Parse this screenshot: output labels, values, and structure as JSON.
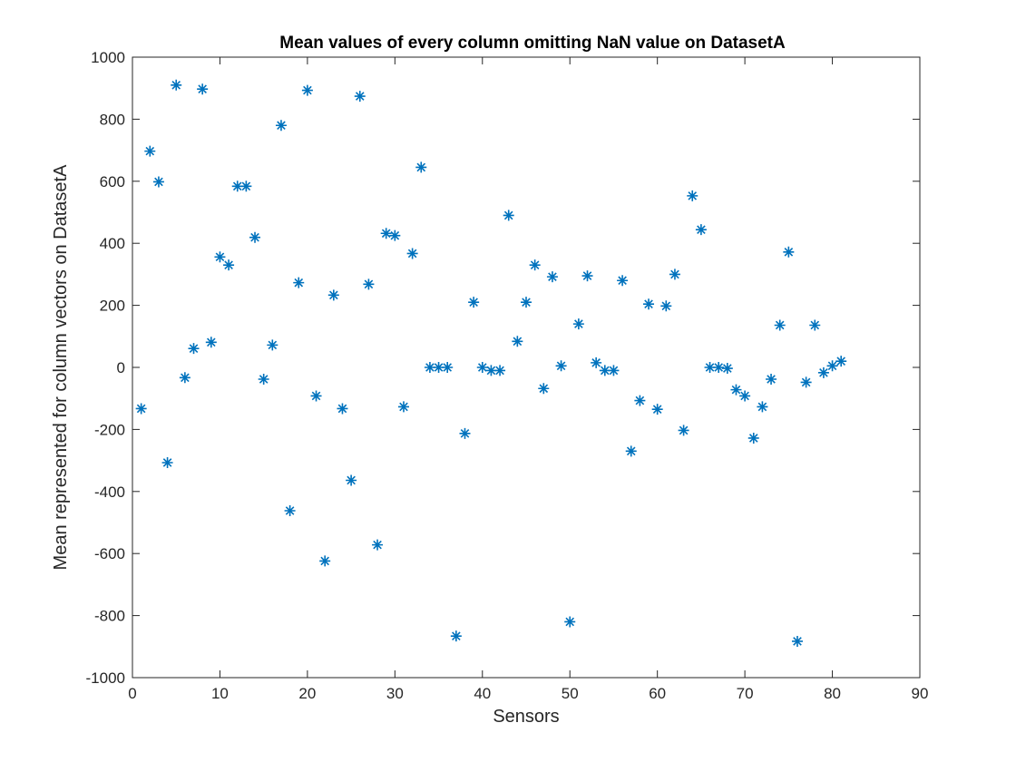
{
  "chart_data": {
    "type": "scatter",
    "title": "Mean values of every column omitting NaN value on DatasetA",
    "xlabel": "Sensors",
    "ylabel": "Mean represented for column vectors on DatasetA",
    "xlim": [
      0,
      90
    ],
    "ylim": [
      -1000,
      1000
    ],
    "xticks": [
      0,
      10,
      20,
      30,
      40,
      50,
      60,
      70,
      80,
      90
    ],
    "yticks": [
      -1000,
      -800,
      -600,
      -400,
      -200,
      0,
      200,
      400,
      600,
      800,
      1000
    ],
    "grid": false,
    "legend": "none",
    "marker": "asterisk",
    "marker_color": "#0072BD",
    "series": [
      {
        "x": [
          1,
          2,
          3,
          4,
          5,
          6,
          7,
          8,
          9,
          10,
          11,
          12,
          13,
          14,
          15,
          16,
          17,
          18,
          19,
          20,
          21,
          22,
          23,
          24,
          25,
          26,
          27,
          28,
          29,
          30,
          31,
          32,
          33,
          34,
          35,
          36,
          37,
          38,
          39,
          40,
          41,
          42,
          43,
          44,
          45,
          46,
          47,
          48,
          49,
          50,
          51,
          52,
          53,
          54,
          55,
          56,
          57,
          58,
          59,
          60,
          61,
          62,
          63,
          64,
          65,
          66,
          67,
          68,
          69,
          70,
          71,
          72,
          73,
          74,
          75,
          76,
          77,
          78,
          79,
          80,
          81
        ],
        "values": [
          -133,
          697,
          598,
          -307,
          910,
          -33,
          61,
          897,
          81,
          356,
          330,
          584,
          584,
          419,
          -38,
          72,
          780,
          -462,
          273,
          893,
          -92,
          -624,
          233,
          -133,
          -364,
          874,
          268,
          -572,
          432,
          425,
          -127,
          367,
          645,
          0,
          0,
          0,
          -866,
          -213,
          210,
          0,
          -10,
          -10,
          490,
          84,
          210,
          330,
          -68,
          292,
          5,
          -820,
          140,
          295,
          15,
          -10,
          -10,
          280,
          -270,
          -107,
          204,
          -135,
          198,
          300,
          -203,
          553,
          444,
          0,
          0,
          -3,
          -72,
          -92,
          -228,
          -127,
          -38,
          136,
          372,
          -883,
          -48,
          136,
          -17,
          5,
          20
        ]
      }
    ]
  }
}
